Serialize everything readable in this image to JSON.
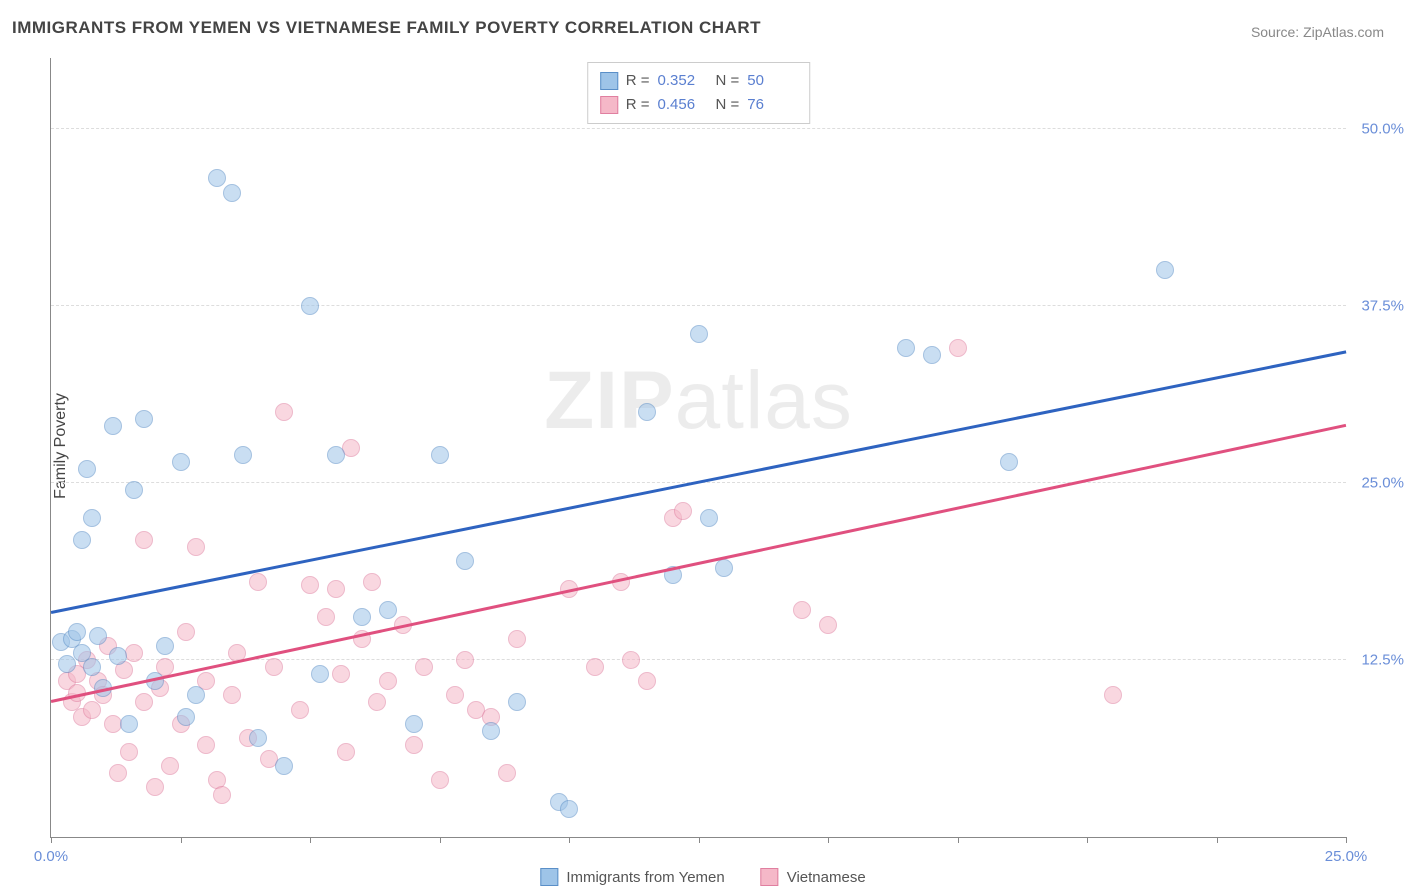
{
  "title": "IMMIGRANTS FROM YEMEN VS VIETNAMESE FAMILY POVERTY CORRELATION CHART",
  "source": "Source: ZipAtlas.com",
  "watermark_a": "ZIP",
  "watermark_b": "atlas",
  "chart": {
    "type": "scatter",
    "ylabel": "Family Poverty",
    "xlim": [
      0,
      25
    ],
    "ylim": [
      0,
      55
    ],
    "background_color": "#ffffff",
    "grid_color": "#dddddd",
    "axis_color": "#888888",
    "tick_label_color": "#6a8ed8",
    "marker_radius": 9,
    "marker_opacity": 0.55,
    "x_ticks": [
      0,
      2.5,
      5,
      7.5,
      10,
      12.5,
      15,
      17.5,
      20,
      22.5,
      25
    ],
    "x_tick_labels": {
      "0": "0.0%",
      "25": "25.0%"
    },
    "y_ticks": [
      12.5,
      25.0,
      37.5,
      50.0
    ],
    "y_tick_labels": [
      "12.5%",
      "25.0%",
      "37.5%",
      "50.0%"
    ],
    "series": [
      {
        "name": "Immigrants from Yemen",
        "fill_color": "#9ec4e8",
        "stroke_color": "#5a8fc8",
        "trend_color": "#2e63c0",
        "r": "0.352",
        "n": "50",
        "trend": {
          "y_at_x0": 15.8,
          "y_at_x25": 34.2
        },
        "points": [
          [
            0.2,
            13.8
          ],
          [
            0.3,
            12.2
          ],
          [
            0.4,
            14.0
          ],
          [
            0.5,
            14.5
          ],
          [
            0.6,
            21.0
          ],
          [
            0.6,
            13.0
          ],
          [
            0.7,
            26.0
          ],
          [
            0.8,
            22.5
          ],
          [
            0.8,
            12.0
          ],
          [
            0.9,
            14.2
          ],
          [
            1.0,
            10.5
          ],
          [
            1.2,
            29.0
          ],
          [
            1.3,
            12.8
          ],
          [
            1.5,
            8.0
          ],
          [
            1.6,
            24.5
          ],
          [
            1.8,
            29.5
          ],
          [
            2.0,
            11.0
          ],
          [
            2.2,
            13.5
          ],
          [
            2.5,
            26.5
          ],
          [
            2.6,
            8.5
          ],
          [
            2.8,
            10.0
          ],
          [
            3.2,
            46.5
          ],
          [
            3.5,
            45.5
          ],
          [
            3.7,
            27.0
          ],
          [
            4.0,
            7.0
          ],
          [
            4.5,
            5.0
          ],
          [
            5.0,
            37.5
          ],
          [
            5.2,
            11.5
          ],
          [
            5.5,
            27.0
          ],
          [
            6.0,
            15.5
          ],
          [
            6.5,
            16.0
          ],
          [
            7.0,
            8.0
          ],
          [
            7.5,
            27.0
          ],
          [
            8.0,
            19.5
          ],
          [
            8.5,
            7.5
          ],
          [
            9.0,
            9.5
          ],
          [
            9.8,
            2.5
          ],
          [
            10.0,
            2.0
          ],
          [
            11.5,
            30.0
          ],
          [
            12.0,
            18.5
          ],
          [
            12.5,
            35.5
          ],
          [
            12.7,
            22.5
          ],
          [
            13.0,
            19.0
          ],
          [
            16.5,
            34.5
          ],
          [
            17.0,
            34.0
          ],
          [
            18.5,
            26.5
          ],
          [
            21.5,
            40.0
          ]
        ]
      },
      {
        "name": "Vietnamese",
        "fill_color": "#f5b8c8",
        "stroke_color": "#e07fa0",
        "trend_color": "#e0507f",
        "r": "0.456",
        "n": "76",
        "trend": {
          "y_at_x0": 9.5,
          "y_at_x25": 29.0
        },
        "points": [
          [
            0.3,
            11.0
          ],
          [
            0.4,
            9.5
          ],
          [
            0.5,
            10.2
          ],
          [
            0.5,
            11.5
          ],
          [
            0.6,
            8.5
          ],
          [
            0.7,
            12.5
          ],
          [
            0.8,
            9.0
          ],
          [
            0.9,
            11.0
          ],
          [
            1.0,
            10.0
          ],
          [
            1.1,
            13.5
          ],
          [
            1.2,
            8.0
          ],
          [
            1.3,
            4.5
          ],
          [
            1.4,
            11.8
          ],
          [
            1.5,
            6.0
          ],
          [
            1.6,
            13.0
          ],
          [
            1.8,
            9.5
          ],
          [
            1.8,
            21.0
          ],
          [
            2.0,
            3.5
          ],
          [
            2.1,
            10.5
          ],
          [
            2.2,
            12.0
          ],
          [
            2.3,
            5.0
          ],
          [
            2.5,
            8.0
          ],
          [
            2.6,
            14.5
          ],
          [
            2.8,
            20.5
          ],
          [
            3.0,
            6.5
          ],
          [
            3.0,
            11.0
          ],
          [
            3.2,
            4.0
          ],
          [
            3.3,
            3.0
          ],
          [
            3.5,
            10.0
          ],
          [
            3.6,
            13.0
          ],
          [
            3.8,
            7.0
          ],
          [
            4.0,
            18.0
          ],
          [
            4.2,
            5.5
          ],
          [
            4.3,
            12.0
          ],
          [
            4.5,
            30.0
          ],
          [
            4.8,
            9.0
          ],
          [
            5.0,
            17.8
          ],
          [
            5.3,
            15.5
          ],
          [
            5.5,
            17.5
          ],
          [
            5.6,
            11.5
          ],
          [
            5.7,
            6.0
          ],
          [
            5.8,
            27.5
          ],
          [
            6.0,
            14.0
          ],
          [
            6.2,
            18.0
          ],
          [
            6.3,
            9.5
          ],
          [
            6.5,
            11.0
          ],
          [
            6.8,
            15.0
          ],
          [
            7.0,
            6.5
          ],
          [
            7.2,
            12.0
          ],
          [
            7.5,
            4.0
          ],
          [
            7.8,
            10.0
          ],
          [
            8.0,
            12.5
          ],
          [
            8.2,
            9.0
          ],
          [
            8.5,
            8.5
          ],
          [
            8.8,
            4.5
          ],
          [
            9.0,
            14.0
          ],
          [
            10.0,
            17.5
          ],
          [
            10.5,
            12.0
          ],
          [
            11.0,
            18.0
          ],
          [
            11.2,
            12.5
          ],
          [
            11.5,
            11.0
          ],
          [
            12.0,
            22.5
          ],
          [
            12.2,
            23.0
          ],
          [
            14.5,
            16.0
          ],
          [
            15.0,
            15.0
          ],
          [
            17.5,
            34.5
          ],
          [
            20.5,
            10.0
          ]
        ]
      }
    ]
  },
  "legend_bottom": [
    {
      "swatch_fill": "#9ec4e8",
      "swatch_stroke": "#5a8fc8",
      "label": "Immigrants from Yemen"
    },
    {
      "swatch_fill": "#f5b8c8",
      "swatch_stroke": "#e07fa0",
      "label": "Vietnamese"
    }
  ]
}
